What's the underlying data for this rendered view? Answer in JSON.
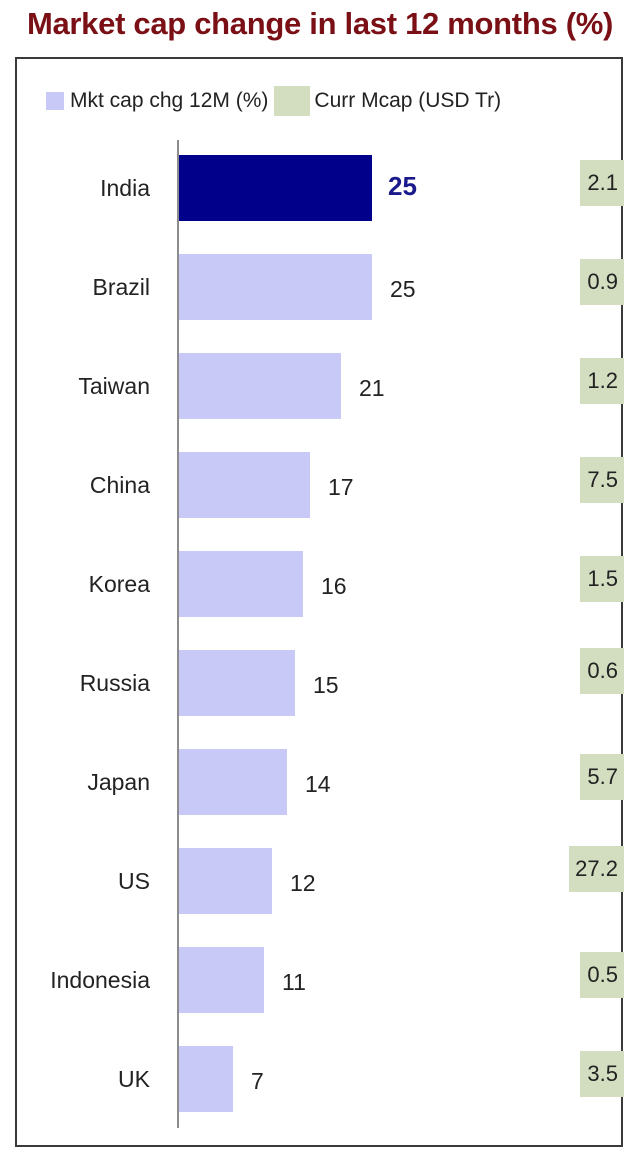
{
  "title": "Market cap change in last 12 months (%)",
  "legend": {
    "series1": "Mkt cap chg 12M (%)",
    "series2": "Curr Mcap (USD Tr)"
  },
  "colors": {
    "title": "#7a1016",
    "bar": "#c9c9f7",
    "bar_highlight": "#00008b",
    "mcap_box": "#d3dec1"
  },
  "rows": [
    {
      "country": "India",
      "chg": "25",
      "mcap": "2.1"
    },
    {
      "country": "Brazil",
      "chg": "25",
      "mcap": "0.9"
    },
    {
      "country": "Taiwan",
      "chg": "21",
      "mcap": "1.2"
    },
    {
      "country": "China",
      "chg": "17",
      "mcap": "7.5"
    },
    {
      "country": "Korea",
      "chg": "16",
      "mcap": "1.5"
    },
    {
      "country": "Russia",
      "chg": "15",
      "mcap": "0.6"
    },
    {
      "country": "Japan",
      "chg": "14",
      "mcap": "5.7"
    },
    {
      "country": "US",
      "chg": "12",
      "mcap": "27.2"
    },
    {
      "country": "Indonesia",
      "chg": "11",
      "mcap": "0.5"
    },
    {
      "country": "UK",
      "chg": "7",
      "mcap": "3.5"
    }
  ],
  "chart_data": {
    "type": "bar",
    "orientation": "horizontal",
    "title": "Market cap change in last 12 months (%)",
    "categories": [
      "India",
      "Brazil",
      "Taiwan",
      "China",
      "Korea",
      "Russia",
      "Japan",
      "US",
      "Indonesia",
      "UK"
    ],
    "series": [
      {
        "name": "Mkt cap chg 12M (%)",
        "values": [
          25,
          25,
          21,
          17,
          16,
          15,
          14,
          12,
          11,
          7
        ]
      },
      {
        "name": "Curr Mcap (USD Tr)",
        "values": [
          2.1,
          0.9,
          1.2,
          7.5,
          1.5,
          0.6,
          5.7,
          27.2,
          0.5,
          3.5
        ]
      }
    ],
    "highlight": "India",
    "xlabel": "",
    "ylabel": "",
    "legend_position": "top",
    "grid": false
  }
}
